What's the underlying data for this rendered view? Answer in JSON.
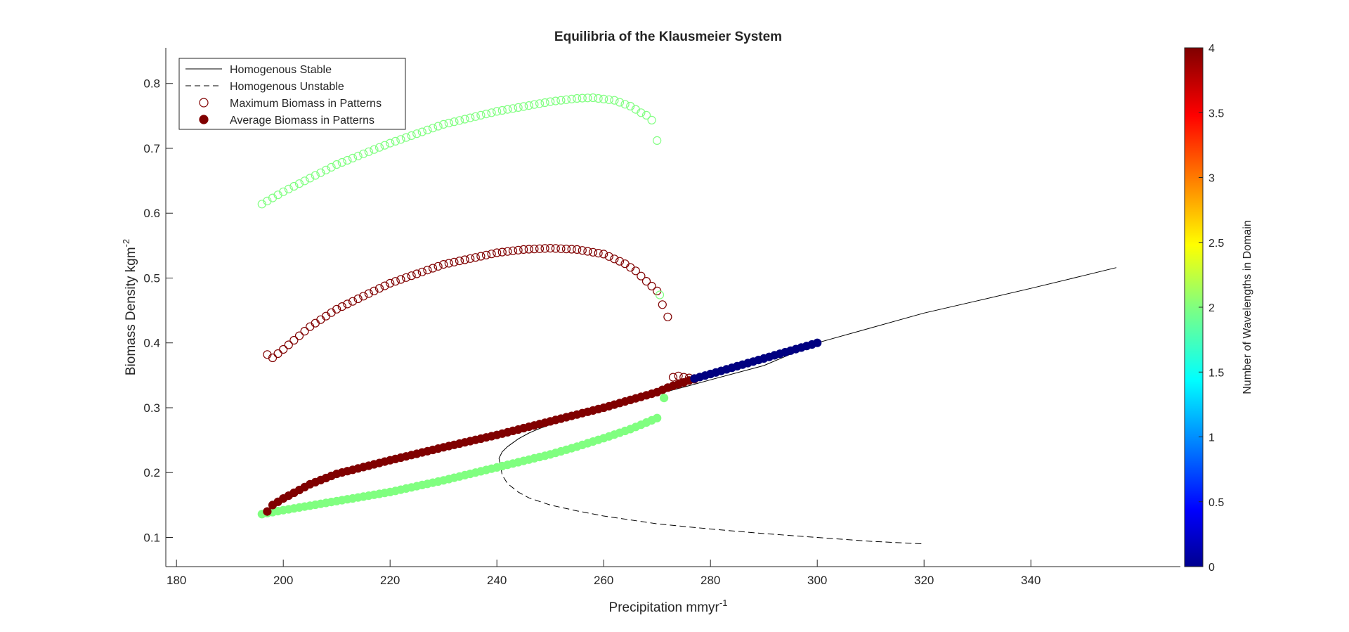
{
  "chart_data": {
    "type": "scatter",
    "title": "Equilibria of the Klausmeier System",
    "xlabel": {
      "text": "Precipitation mmyr",
      "sup": "-1"
    },
    "ylabel": {
      "text": "Biomass Density kgm",
      "sup": "-2"
    },
    "xlim": [
      178,
      368
    ],
    "ylim": [
      0.055,
      0.855
    ],
    "xticks": [
      180,
      200,
      220,
      240,
      260,
      280,
      300,
      320,
      340
    ],
    "yticks": [
      0.1,
      0.2,
      0.3,
      0.4,
      0.5,
      0.6,
      0.7,
      0.8
    ],
    "ytick_labels": [
      "0.1",
      "0.2",
      "0.3",
      "0.4",
      "0.5",
      "0.6",
      "0.7",
      "0.8"
    ],
    "legend_position": "top-left",
    "legend": [
      {
        "label": "Homogenous Stable",
        "style": "solid-line"
      },
      {
        "label": "Homogenous Unstable",
        "style": "dashed-line"
      },
      {
        "label": "Maximum Biomass in Patterns",
        "style": "open-circle"
      },
      {
        "label": "Average Biomass in Patterns",
        "style": "filled-circle"
      }
    ],
    "colorbar": {
      "label": "Number of Wavelengths in Domain",
      "range": [
        0,
        4
      ],
      "ticks": [
        "0",
        "0.5",
        "1",
        "1.5",
        "2",
        "2.5",
        "3",
        "3.5",
        "4"
      ],
      "colormap": "jet"
    },
    "colors": {
      "wavelength_2": "#80ff80",
      "wavelength_4": "#800000",
      "wavelength_0": "#000080",
      "line": "#000000"
    },
    "series": [
      {
        "name": "Homogenous Stable",
        "style": "solid",
        "x": [
          240.4,
          241,
          242,
          244,
          246,
          248,
          250,
          252,
          254,
          260,
          270,
          276,
          280,
          290,
          300,
          310,
          320,
          330,
          340,
          350,
          356
        ],
        "y": [
          0.222,
          0.232,
          0.24,
          0.252,
          0.261,
          0.268,
          0.274,
          0.28,
          0.286,
          0.3,
          0.321,
          0.334,
          0.343,
          0.365,
          0.4,
          0.423,
          0.446,
          0.465,
          0.484,
          0.504,
          0.516
        ]
      },
      {
        "name": "Homogenous Unstable",
        "style": "dashed",
        "x": [
          240.4,
          241,
          242,
          244,
          246,
          250,
          255,
          260,
          270,
          280,
          290,
          300,
          310,
          320
        ],
        "y": [
          0.222,
          0.196,
          0.183,
          0.17,
          0.161,
          0.15,
          0.141,
          0.133,
          0.121,
          0.113,
          0.106,
          0.1,
          0.094,
          0.09
        ]
      },
      {
        "name": "Maximum Biomass in Patterns (wavelength 2)",
        "marker": "open-circle",
        "color_value": 2,
        "x_range": [
          196,
          270
        ],
        "x": [
          196,
          200,
          210,
          220,
          230,
          240,
          250,
          255,
          258,
          262,
          265,
          267,
          268.5,
          269.5,
          270
        ],
        "y": [
          0.614,
          0.633,
          0.675,
          0.708,
          0.737,
          0.757,
          0.772,
          0.777,
          0.778,
          0.774,
          0.765,
          0.755,
          0.749,
          0.738,
          0.712
        ]
      },
      {
        "name": "Maximum Biomass in Patterns (wavelength 4)",
        "marker": "open-circle",
        "color_value": 4,
        "x_range": [
          197,
          277
        ],
        "x": [
          197,
          198,
          200,
          205,
          210,
          220,
          230,
          240,
          245,
          250,
          255,
          260,
          264,
          266,
          268,
          270,
          271,
          272,
          273,
          274,
          275,
          276,
          277
        ],
        "y": [
          0.382,
          0.377,
          0.39,
          0.425,
          0.452,
          0.492,
          0.521,
          0.539,
          0.544,
          0.546,
          0.544,
          0.537,
          0.522,
          0.511,
          0.495,
          0.48,
          0.459,
          0.44,
          0.347,
          0.349,
          0.347,
          0.346,
          0.344
        ]
      },
      {
        "name": "Average Biomass in Patterns (wavelength 2)",
        "marker": "filled-circle",
        "color_value": 2,
        "x_range": [
          196,
          270
        ],
        "x": [
          196,
          200,
          210,
          220,
          230,
          240,
          250,
          255,
          260,
          265,
          270
        ],
        "y": [
          0.136,
          0.142,
          0.156,
          0.17,
          0.188,
          0.208,
          0.228,
          0.24,
          0.253,
          0.267,
          0.284
        ]
      },
      {
        "name": "Average Biomass in Patterns (wavelength 4)",
        "marker": "filled-circle",
        "color_value": 4,
        "x_range": [
          197,
          277
        ],
        "x": [
          197,
          198,
          200,
          205,
          210,
          220,
          230,
          240,
          250,
          260,
          265,
          270,
          272,
          275,
          277
        ],
        "y": [
          0.14,
          0.15,
          0.16,
          0.182,
          0.198,
          0.219,
          0.239,
          0.258,
          0.279,
          0.3,
          0.312,
          0.324,
          0.331,
          0.339,
          0.345
        ]
      },
      {
        "name": "Average Biomass in Patterns (wavelength 0)",
        "marker": "filled-circle",
        "color_value": 0,
        "x_range": [
          277,
          300
        ],
        "x": [
          277,
          280,
          290,
          300
        ],
        "y": [
          0.345,
          0.352,
          0.376,
          0.4
        ]
      },
      {
        "name": "Extra points (wavelength 2)",
        "marker": "mixed",
        "color_value": 2,
        "points": [
          {
            "x": 270.5,
            "y": 0.474,
            "marker": "open-circle"
          },
          {
            "x": 271.3,
            "y": 0.315,
            "marker": "filled-circle"
          }
        ]
      }
    ]
  }
}
